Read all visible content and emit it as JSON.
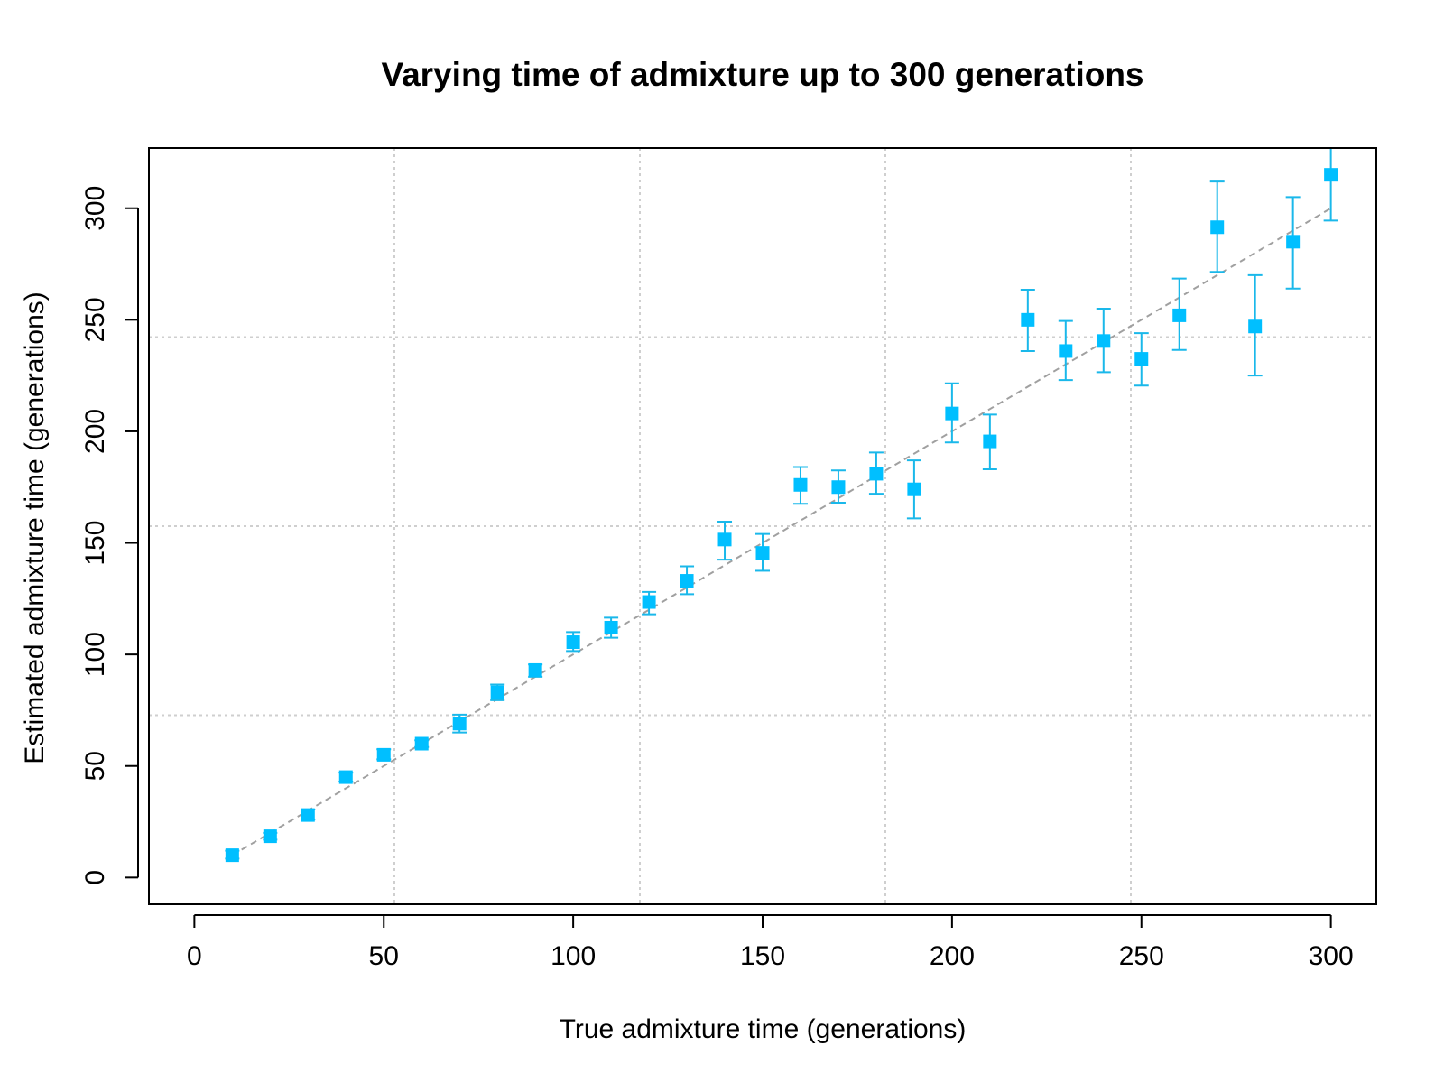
{
  "chart_data": {
    "type": "scatter",
    "title": "Varying time of admixture up to 300 generations",
    "xlabel": "True admixture time (generations)",
    "ylabel": "Estimated admixture time (generations)",
    "xlim": [
      -12,
      312
    ],
    "ylim": [
      -12,
      327
    ],
    "xticks": [
      0,
      50,
      100,
      150,
      200,
      250,
      300
    ],
    "yticks": [
      0,
      50,
      100,
      150,
      200,
      250,
      300
    ],
    "grid": true,
    "legend": "none",
    "reference_line": {
      "style": "dashed",
      "color": "#a0a0a0",
      "from": [
        10,
        10
      ],
      "to": [
        300,
        300
      ]
    },
    "colors": {
      "points": "#00bfff",
      "errorbars": "#1ab8ea",
      "grid": "#cfcfcf",
      "axes": "#000000"
    },
    "series": [
      {
        "marker": "filled-square",
        "x": [
          10,
          20,
          30,
          40,
          50,
          60,
          70,
          80,
          90,
          100,
          110,
          120,
          130,
          140,
          150,
          160,
          170,
          180,
          190,
          200,
          210,
          220,
          230,
          240,
          250,
          260,
          270,
          280,
          290,
          300
        ],
        "y": [
          10,
          18.5,
          28,
          45,
          55,
          60,
          69,
          83,
          93,
          105.5,
          112,
          123.5,
          133,
          151.5,
          145.5,
          176,
          175,
          181,
          174,
          208,
          195.5,
          250,
          236,
          240.5,
          232.5,
          252,
          291.5,
          247,
          285,
          315
        ],
        "ylow": [
          8.5,
          17,
          26,
          43,
          53,
          58.5,
          65,
          79.5,
          90,
          101.5,
          107.5,
          118,
          127,
          142.5,
          137.5,
          167.5,
          168,
          172,
          161,
          195,
          183,
          236,
          223,
          226.5,
          220.5,
          236.5,
          271.5,
          225,
          264,
          294.5
        ],
        "yhigh": [
          12,
          20,
          30.5,
          47,
          57.5,
          61.5,
          73,
          86.5,
          95.5,
          110,
          116.5,
          128,
          139.5,
          159.5,
          154,
          184,
          182.5,
          190.5,
          187,
          221.5,
          207.5,
          263.5,
          249.5,
          255,
          244,
          268.5,
          312,
          270,
          305,
          327
        ]
      }
    ]
  }
}
